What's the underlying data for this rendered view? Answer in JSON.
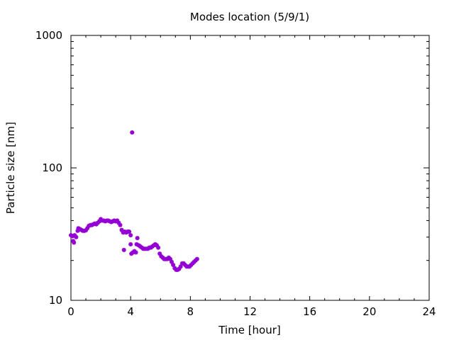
{
  "chart_data": {
    "type": "scatter",
    "title": "Modes location (5/9/1)",
    "xlabel": "Time [hour]",
    "ylabel": "Particle size [nm]",
    "xlim": [
      0,
      24
    ],
    "ylim": [
      10,
      1000
    ],
    "yscale": "log",
    "grid": false,
    "legend": "none",
    "x_ticks": [
      0,
      4,
      8,
      12,
      16,
      20,
      24
    ],
    "y_ticks": [
      10,
      100,
      1000
    ],
    "x_tick_labels": [
      "0",
      "4",
      "8",
      "12",
      "16",
      "20",
      "24"
    ],
    "y_tick_labels": [
      "10",
      "100",
      "1000"
    ],
    "marker_color": "#9400d3",
    "series": [
      {
        "points": [
          [
            0.0,
            31.0
          ],
          [
            0.1,
            30.5
          ],
          [
            0.15,
            28.0
          ],
          [
            0.2,
            27.3
          ],
          [
            0.25,
            31.0
          ],
          [
            0.35,
            30.0
          ],
          [
            0.45,
            33.5
          ],
          [
            0.5,
            35.0
          ],
          [
            0.6,
            34.5
          ],
          [
            0.7,
            34.0
          ],
          [
            0.8,
            33.5
          ],
          [
            0.9,
            33.5
          ],
          [
            1.0,
            33.8
          ],
          [
            1.1,
            35.0
          ],
          [
            1.2,
            36.5
          ],
          [
            1.3,
            37.0
          ],
          [
            1.4,
            37.0
          ],
          [
            1.5,
            37.5
          ],
          [
            1.6,
            38.0
          ],
          [
            1.7,
            37.5
          ],
          [
            1.8,
            38.5
          ],
          [
            1.9,
            39.5
          ],
          [
            2.0,
            41.0
          ],
          [
            2.1,
            40.0
          ],
          [
            2.2,
            40.0
          ],
          [
            2.3,
            39.5
          ],
          [
            2.4,
            40.0
          ],
          [
            2.5,
            40.0
          ],
          [
            2.6,
            39.5
          ],
          [
            2.7,
            39.0
          ],
          [
            2.8,
            39.5
          ],
          [
            2.9,
            40.0
          ],
          [
            3.0,
            39.5
          ],
          [
            3.1,
            40.0
          ],
          [
            3.2,
            38.5
          ],
          [
            3.3,
            37.0
          ],
          [
            3.4,
            34.0
          ],
          [
            3.5,
            32.5
          ],
          [
            3.55,
            24.0
          ],
          [
            3.6,
            33.0
          ],
          [
            3.7,
            32.5
          ],
          [
            3.8,
            33.0
          ],
          [
            3.9,
            33.0
          ],
          [
            4.0,
            31.0
          ],
          [
            4.0,
            26.5
          ],
          [
            4.05,
            22.5
          ],
          [
            4.1,
            185.0
          ],
          [
            4.15,
            23.0
          ],
          [
            4.25,
            23.5
          ],
          [
            4.35,
            23.0
          ],
          [
            4.4,
            26.5
          ],
          [
            4.45,
            29.5
          ],
          [
            4.55,
            26.0
          ],
          [
            4.65,
            25.5
          ],
          [
            4.75,
            25.0
          ],
          [
            4.85,
            24.5
          ],
          [
            4.95,
            24.5
          ],
          [
            5.05,
            24.5
          ],
          [
            5.15,
            24.5
          ],
          [
            5.25,
            25.0
          ],
          [
            5.35,
            25.0
          ],
          [
            5.45,
            25.5
          ],
          [
            5.55,
            26.0
          ],
          [
            5.65,
            26.5
          ],
          [
            5.75,
            26.0
          ],
          [
            5.85,
            25.0
          ],
          [
            5.95,
            22.5
          ],
          [
            6.05,
            21.5
          ],
          [
            6.15,
            21.0
          ],
          [
            6.25,
            20.5
          ],
          [
            6.35,
            20.5
          ],
          [
            6.45,
            20.5
          ],
          [
            6.55,
            21.0
          ],
          [
            6.65,
            20.5
          ],
          [
            6.75,
            19.5
          ],
          [
            6.85,
            18.5
          ],
          [
            6.95,
            17.5
          ],
          [
            7.05,
            17.0
          ],
          [
            7.15,
            17.0
          ],
          [
            7.25,
            17.3
          ],
          [
            7.35,
            18.0
          ],
          [
            7.45,
            19.0
          ],
          [
            7.55,
            19.0
          ],
          [
            7.65,
            18.5
          ],
          [
            7.75,
            18.0
          ],
          [
            7.85,
            18.0
          ],
          [
            7.95,
            18.0
          ],
          [
            8.05,
            18.5
          ],
          [
            8.15,
            19.0
          ],
          [
            8.25,
            19.5
          ],
          [
            8.35,
            20.0
          ],
          [
            8.45,
            20.5
          ]
        ]
      }
    ]
  }
}
